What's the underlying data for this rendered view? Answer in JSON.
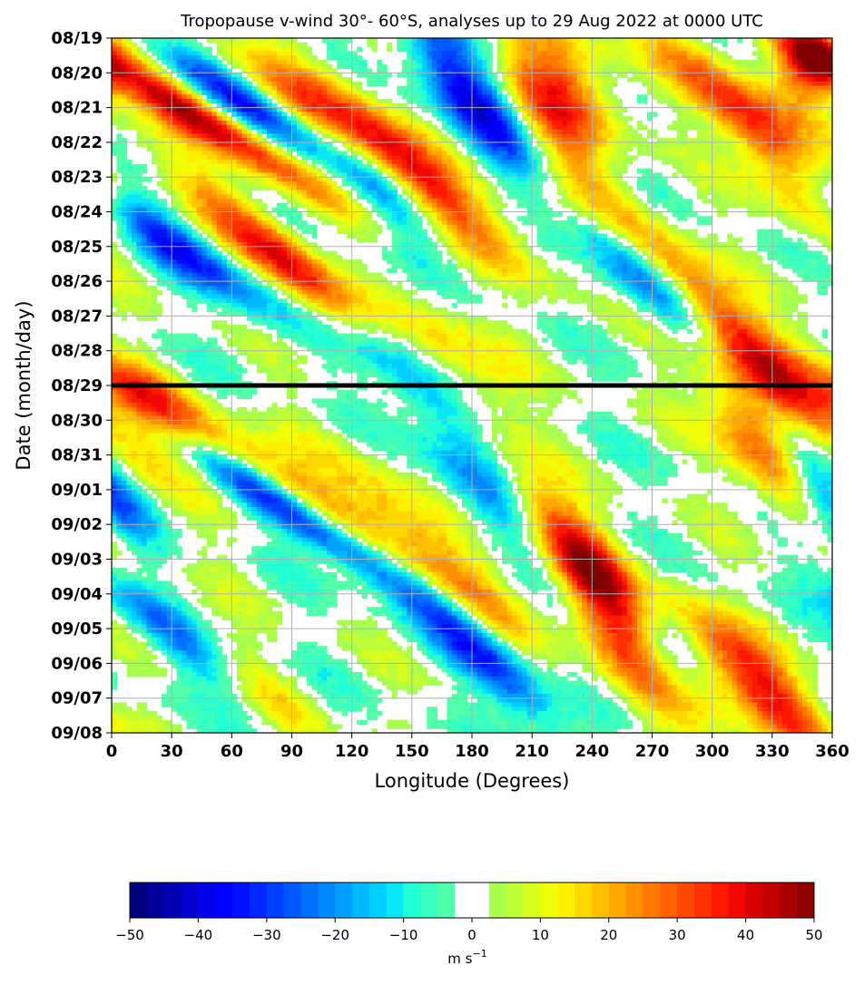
{
  "chart_data": {
    "type": "heatmap",
    "title": "Tropopause v-wind 30°- 60°S, analyses up to 29 Aug 2022 at 0000 UTC",
    "xlabel": "Longitude (Degrees)",
    "ylabel": "Date (month/day)",
    "xlim": [
      0,
      360
    ],
    "x_ticks": [
      "0",
      "30",
      "60",
      "90",
      "120",
      "150",
      "180",
      "210",
      "240",
      "270",
      "300",
      "330",
      "360"
    ],
    "y_ticks": [
      "08/19",
      "08/20",
      "08/21",
      "08/22",
      "08/23",
      "08/24",
      "08/25",
      "08/26",
      "08/27",
      "08/28",
      "08/29",
      "08/30",
      "08/31",
      "09/01",
      "09/02",
      "09/03",
      "09/04",
      "09/05",
      "09/06",
      "09/07",
      "09/08"
    ],
    "analysis_end_date": "08/29",
    "grid": true,
    "colorbar": {
      "label": "m s",
      "label_exponent": "−1",
      "range": [
        -50,
        50
      ],
      "tick_labels": [
        "−50",
        "−40",
        "−30",
        "−20",
        "−10",
        "0",
        "10",
        "20",
        "30",
        "40",
        "50"
      ],
      "levels": [
        -50,
        -47.5,
        -45,
        -42.5,
        -40,
        -37.5,
        -35,
        -32.5,
        -30,
        -27.5,
        -25,
        -22.5,
        -20,
        -17.5,
        -15,
        -12.5,
        -10,
        -7.5,
        -5,
        -2.5,
        2.5,
        5,
        7.5,
        10,
        12.5,
        15,
        17.5,
        20,
        22.5,
        25,
        27.5,
        30,
        32.5,
        35,
        37.5,
        40,
        42.5,
        45,
        47.5,
        50
      ],
      "colors": [
        "#00007f",
        "#00009a",
        "#0000b4",
        "#0000cf",
        "#0000e9",
        "#0000ff",
        "#0010ff",
        "#0028ff",
        "#0040ff",
        "#0058ff",
        "#0070ff",
        "#0088ff",
        "#00a0ff",
        "#00b8ff",
        "#00d0ff",
        "#0ae8f5",
        "#22ffd5",
        "#3affc0",
        "#52ffaa",
        "#ffffff",
        "#a8ff4f",
        "#c0ff37",
        "#d8ff1f",
        "#eeff08",
        "#fff000",
        "#ffd800",
        "#ffc000",
        "#ffa800",
        "#ff9000",
        "#ff7800",
        "#ff6000",
        "#ff4800",
        "#ff3000",
        "#ff1800",
        "#f10800",
        "#d90000",
        "#c10000",
        "#a90000",
        "#8f0000",
        "#7f0000"
      ]
    },
    "features": [
      {
        "lon_start": 0,
        "day_start": 0.6,
        "slope_deg_per_day": 26,
        "amplitude": 46,
        "width_deg": 14,
        "duration_days": 3.2
      },
      {
        "lon_start": 30,
        "day_start": 0.3,
        "slope_deg_per_day": 24,
        "amplitude": -36,
        "width_deg": 14,
        "duration_days": 3.0
      },
      {
        "lon_start": 70,
        "day_start": 0.8,
        "slope_deg_per_day": 22,
        "amplitude": 24,
        "width_deg": 16,
        "duration_days": 4.0
      },
      {
        "lon_start": 110,
        "day_start": 1.5,
        "slope_deg_per_day": 18,
        "amplitude": 34,
        "width_deg": 14,
        "duration_days": 3.5
      },
      {
        "lon_start": 120,
        "day_start": 3.0,
        "slope_deg_per_day": 12,
        "amplitude": -22,
        "width_deg": 12,
        "duration_days": 2.5
      },
      {
        "lon_start": 160,
        "day_start": 0.0,
        "slope_deg_per_day": 12,
        "amplitude": -40,
        "width_deg": 14,
        "duration_days": 3.5
      },
      {
        "lon_start": 215,
        "day_start": 0.0,
        "slope_deg_per_day": 5,
        "amplitude": 30,
        "width_deg": 20,
        "duration_days": 2.5
      },
      {
        "lon_start": 220,
        "day_start": 2.5,
        "slope_deg_per_day": 3,
        "amplitude": 16,
        "width_deg": 18,
        "duration_days": 3.0
      },
      {
        "lon_start": 280,
        "day_start": 0.0,
        "slope_deg_per_day": 15,
        "amplitude": 24,
        "width_deg": 14,
        "duration_days": 3.0
      },
      {
        "lon_start": 320,
        "day_start": 2.0,
        "slope_deg_per_day": 10,
        "amplitude": 28,
        "width_deg": 14,
        "duration_days": 3.0
      },
      {
        "lon_start": 350,
        "day_start": 0.0,
        "slope_deg_per_day": 0,
        "amplitude": 36,
        "width_deg": 12,
        "duration_days": 1.5
      },
      {
        "lon_start": 0,
        "day_start": 4.5,
        "slope_deg_per_day": 22,
        "amplitude": -32,
        "width_deg": 14,
        "duration_days": 3.0
      },
      {
        "lon_start": 40,
        "day_start": 4.0,
        "slope_deg_per_day": 22,
        "amplitude": 22,
        "width_deg": 14,
        "duration_days": 3.0
      },
      {
        "lon_start": 80,
        "day_start": 6.0,
        "slope_deg_per_day": 20,
        "amplitude": 42,
        "width_deg": 14,
        "duration_days": 3.0
      },
      {
        "lon_start": 110,
        "day_start": 7.0,
        "slope_deg_per_day": 15,
        "amplitude": -38,
        "width_deg": 13,
        "duration_days": 3.5
      },
      {
        "lon_start": 160,
        "day_start": 8.0,
        "slope_deg_per_day": 12,
        "amplitude": 16,
        "width_deg": 16,
        "duration_days": 2.5
      },
      {
        "lon_start": 240,
        "day_start": 5.3,
        "slope_deg_per_day": 17,
        "amplitude": -34,
        "width_deg": 13,
        "duration_days": 3.5
      },
      {
        "lon_start": 270,
        "day_start": 6.0,
        "slope_deg_per_day": 16,
        "amplitude": 44,
        "width_deg": 14,
        "duration_days": 5.0
      },
      {
        "lon_start": 0,
        "day_start": 9.5,
        "slope_deg_per_day": 15,
        "amplitude": 30,
        "width_deg": 14,
        "duration_days": 2.0
      },
      {
        "lon_start": 40,
        "day_start": 11.0,
        "slope_deg_per_day": 25,
        "amplitude": 30,
        "width_deg": 14,
        "duration_days": 3.5
      },
      {
        "lon_start": 50,
        "day_start": 12.0,
        "slope_deg_per_day": 25,
        "amplitude": -42,
        "width_deg": 13,
        "duration_days": 3.5
      },
      {
        "lon_start": 130,
        "day_start": 13.0,
        "slope_deg_per_day": 15,
        "amplitude": 28,
        "width_deg": 16,
        "duration_days": 4.0
      },
      {
        "lon_start": 10,
        "day_start": 16.0,
        "slope_deg_per_day": 20,
        "amplitude": -32,
        "width_deg": 13,
        "duration_days": 3.0
      },
      {
        "lon_start": 40,
        "day_start": 17.0,
        "slope_deg_per_day": 18,
        "amplitude": 24,
        "width_deg": 13,
        "duration_days": 3.0
      },
      {
        "lon_start": 160,
        "day_start": 16.0,
        "slope_deg_per_day": 15,
        "amplitude": -34,
        "width_deg": 13,
        "duration_days": 3.5
      },
      {
        "lon_start": 210,
        "day_start": 13.0,
        "slope_deg_per_day": 12,
        "amplitude": 34,
        "width_deg": 13,
        "duration_days": 3.0
      },
      {
        "lon_start": 240,
        "day_start": 15.5,
        "slope_deg_per_day": 12,
        "amplitude": 44,
        "width_deg": 16,
        "duration_days": 4.0
      },
      {
        "lon_start": 265,
        "day_start": 16.5,
        "slope_deg_per_day": 8,
        "amplitude": -34,
        "width_deg": 12,
        "duration_days": 2.5
      },
      {
        "lon_start": 310,
        "day_start": 10.0,
        "slope_deg_per_day": 10,
        "amplitude": 38,
        "width_deg": 14,
        "duration_days": 3.5
      },
      {
        "lon_start": 340,
        "day_start": 11.5,
        "slope_deg_per_day": 10,
        "amplitude": -40,
        "width_deg": 12,
        "duration_days": 2.5
      },
      {
        "lon_start": 300,
        "day_start": 17.0,
        "slope_deg_per_day": 15,
        "amplitude": 40,
        "width_deg": 14,
        "duration_days": 3.0
      },
      {
        "lon_start": 170,
        "day_start": 12.0,
        "slope_deg_per_day": 15,
        "amplitude": -22,
        "width_deg": 14,
        "duration_days": 3.0
      }
    ]
  }
}
